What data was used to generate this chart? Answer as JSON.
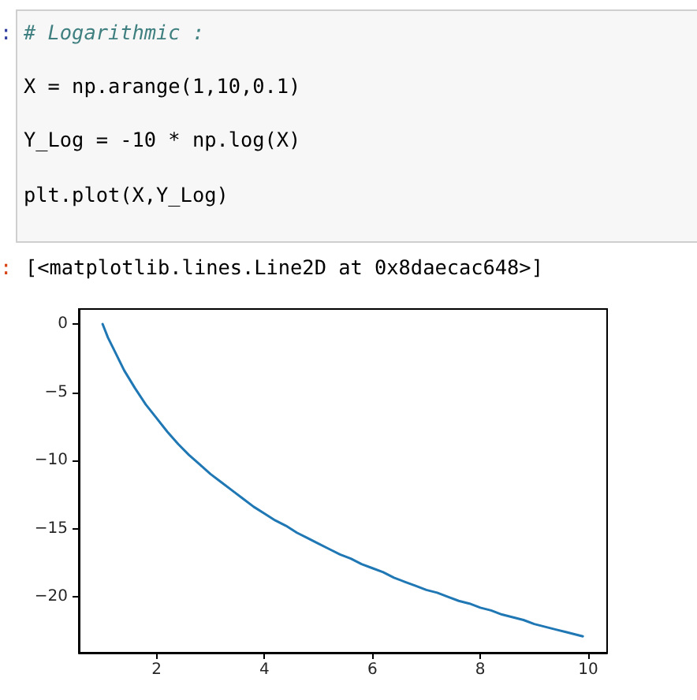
{
  "chart_data": {
    "type": "line",
    "annotations": [
      ":",
      "# Logarithmic :",
      "X = np.arange(1,10,0.1)",
      "Y_Log = -10 * np.log(X)",
      "plt.plot(X,Y_Log)",
      ":",
      "[<matplotlib.lines.Line2D at 0x8daecac648>]"
    ],
    "x": [
      1,
      1.1,
      1.2,
      1.4,
      1.6,
      1.8,
      2,
      2.2,
      2.4,
      2.6,
      2.8,
      3,
      3.2,
      3.4,
      3.6,
      3.8,
      4,
      4.2,
      4.4,
      4.6,
      4.8,
      5,
      5.2,
      5.4,
      5.6,
      5.8,
      6,
      6.2,
      6.4,
      6.6,
      6.8,
      7,
      7.2,
      7.4,
      7.6,
      7.8,
      8,
      8.2,
      8.4,
      8.6,
      8.8,
      9,
      9.2,
      9.4,
      9.6,
      9.8,
      9.9
    ],
    "values": [
      0,
      -1,
      -1.8,
      -3.4,
      -4.7,
      -5.9,
      -6.9,
      -7.9,
      -8.8,
      -9.6,
      -10.3,
      -11,
      -11.6,
      -12.2,
      -12.8,
      -13.4,
      -13.9,
      -14.4,
      -14.8,
      -15.3,
      -15.7,
      -16.1,
      -16.5,
      -16.9,
      -17.2,
      -17.6,
      -17.9,
      -18.2,
      -18.6,
      -18.9,
      -19.2,
      -19.5,
      -19.7,
      -20,
      -20.3,
      -20.5,
      -20.8,
      -21,
      -21.3,
      -21.5,
      -21.7,
      -22,
      -22.2,
      -22.4,
      -22.6,
      -22.8,
      -22.9
    ],
    "color": "#1f77b4",
    "xlim": [
      0.56,
      10.35
    ],
    "xticks": [
      2,
      4,
      6,
      8,
      10
    ],
    "ylim": [
      -24.1,
      1.1
    ],
    "yticks": [
      {
        "value": -20,
        "label": "−20"
      },
      {
        "value": -15,
        "label": "−15"
      },
      {
        "value": -10,
        "label": "−10"
      },
      {
        "value": -5,
        "label": "−5"
      },
      0
    ]
  }
}
